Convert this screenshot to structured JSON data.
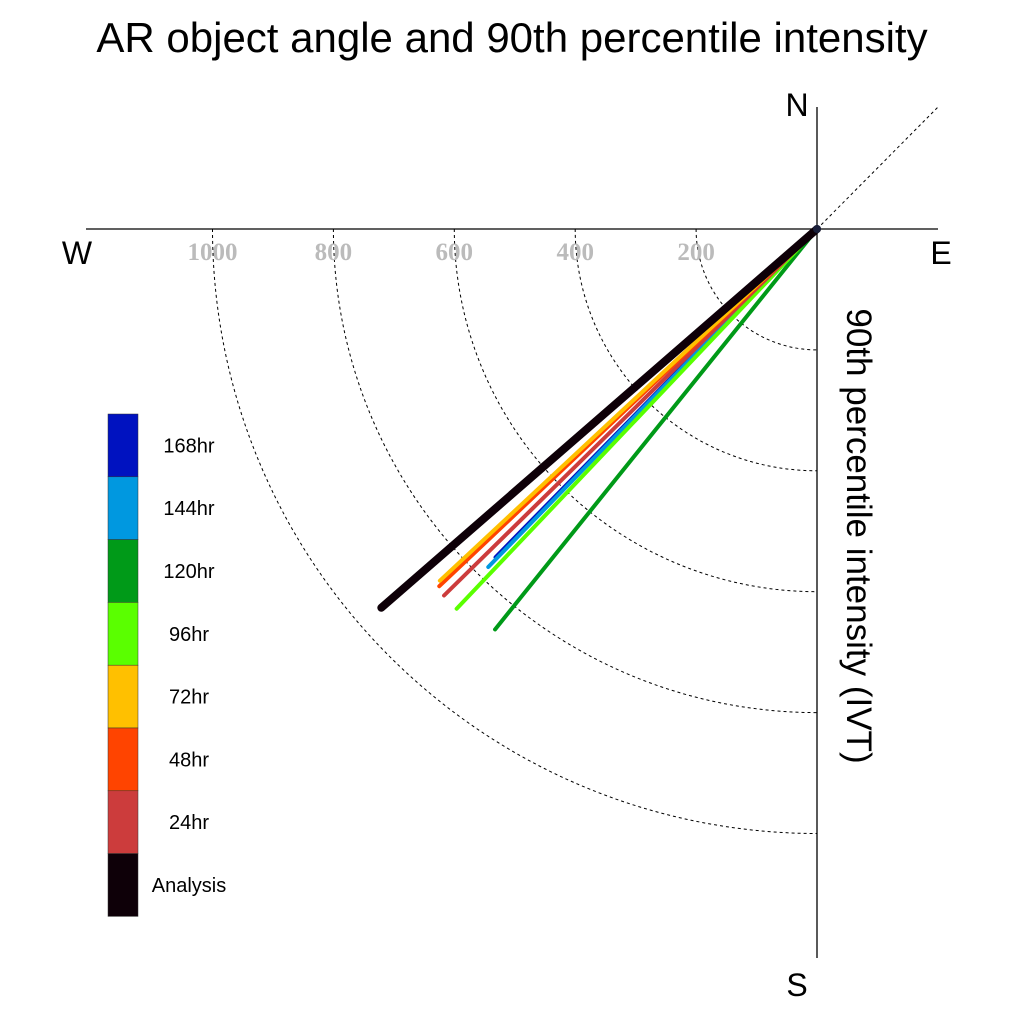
{
  "chart_data": {
    "type": "radial-line",
    "title": "AR object angle and 90th percentile intensity",
    "ylabel": "90th percentile intensity (IVT)",
    "compass": {
      "north": "N",
      "south": "S",
      "west": "W",
      "east": "E"
    },
    "radial_ticks": [
      200,
      400,
      600,
      800,
      1000
    ],
    "radial_tick_labels": [
      "200",
      "400",
      "600",
      "800",
      "1000"
    ],
    "rmax": 1200,
    "grid": true,
    "legend_position": "left",
    "series": [
      {
        "name": "120hr",
        "angle_deg": 141.2,
        "intensity": 850,
        "color": "#009a18"
      },
      {
        "name": "168hr",
        "angle_deg": 135.6,
        "intensity": 760,
        "color": "#0012c0"
      },
      {
        "name": "144hr",
        "angle_deg": 135.8,
        "intensity": 780,
        "color": "#0098e0"
      },
      {
        "name": "96hr",
        "angle_deg": 136.5,
        "intensity": 866,
        "color": "#5aff00"
      },
      {
        "name": "24hr",
        "angle_deg": 134.5,
        "intensity": 865,
        "color": "#cc3c3c"
      },
      {
        "name": "48hr",
        "angle_deg": 133.4,
        "intensity": 860,
        "color": "#ff4400"
      },
      {
        "name": "72hr",
        "angle_deg": 133.0,
        "intensity": 853,
        "color": "#ffc000"
      },
      {
        "name": "Analysis",
        "angle_deg": 131.0,
        "intensity": 955,
        "color": "#0e0008"
      }
    ],
    "legend": [
      {
        "name": "168hr",
        "color": "#0012c0"
      },
      {
        "name": "144hr",
        "color": "#0098e0"
      },
      {
        "name": "120hr",
        "color": "#009a18"
      },
      {
        "name": "96hr",
        "color": "#5aff00"
      },
      {
        "name": "72hr",
        "color": "#ffc000"
      },
      {
        "name": "48hr",
        "color": "#ff4400"
      },
      {
        "name": "24hr",
        "color": "#cc3c3c"
      },
      {
        "name": "Analysis",
        "color": "#0e0008"
      }
    ]
  }
}
